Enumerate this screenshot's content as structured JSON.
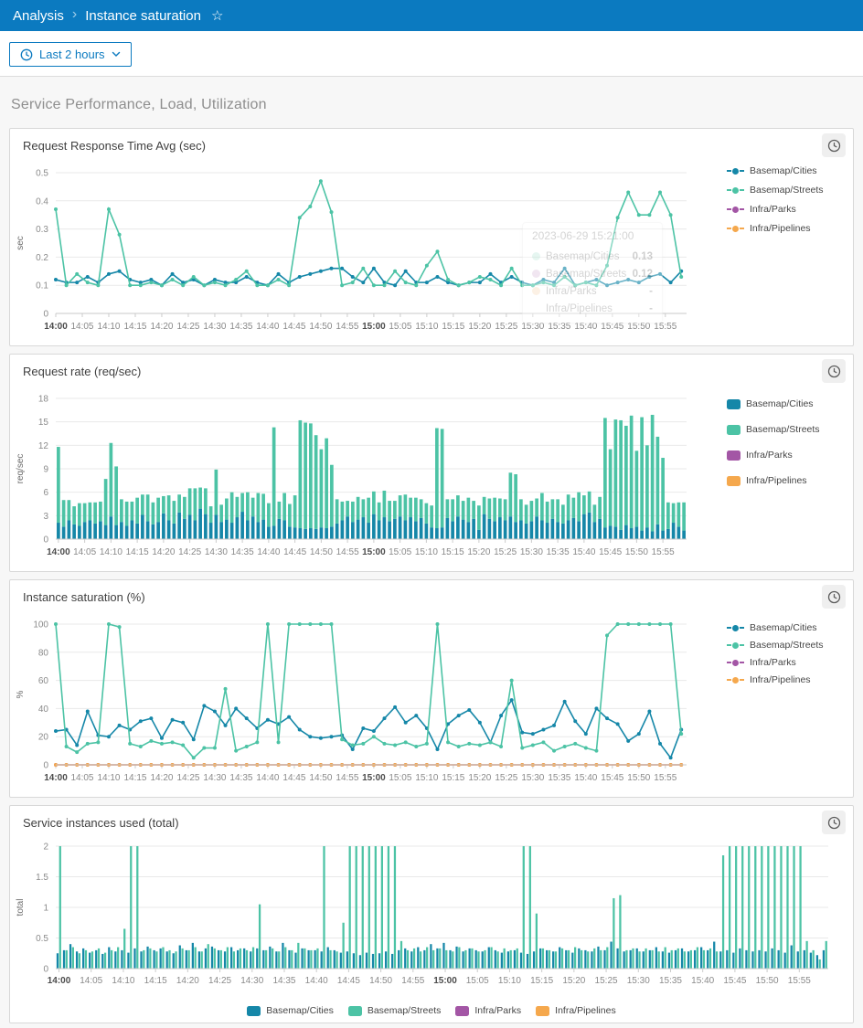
{
  "topbar": {
    "breadcrumb_root": "Analysis",
    "breadcrumb_separator": "›",
    "page_title": "Instance saturation",
    "star_icon": "☆"
  },
  "toolbar": {
    "time_range_label": "Last 2 hours"
  },
  "section": {
    "title": "Service Performance, Load, Utilization"
  },
  "colors": {
    "cities": "#1587a8",
    "streets": "#4cc3a5",
    "parks": "#a356a5",
    "pipelines": "#f5a84d"
  },
  "series_names": [
    "Basemap/Cities",
    "Basemap/Streets",
    "Infra/Parks",
    "Infra/Pipelines"
  ],
  "x_ticks": [
    "14:00",
    "14:05",
    "14:10",
    "14:15",
    "14:20",
    "14:25",
    "14:30",
    "14:35",
    "14:40",
    "14:45",
    "14:50",
    "14:55",
    "15:00",
    "15:05",
    "15:10",
    "15:15",
    "15:20",
    "15:25",
    "15:30",
    "15:35",
    "15:40",
    "15:45",
    "15:50",
    "15:55"
  ],
  "bold_ticks": [
    "14:00",
    "15:00"
  ],
  "tooltip": {
    "timestamp": "2023-06-29 15:21:00",
    "rows": [
      {
        "name": "Basemap/Cities",
        "value": "0.13"
      },
      {
        "name": "Basemap/Streets",
        "value": "0.12"
      },
      {
        "name": "Infra/Parks",
        "value": "-"
      },
      {
        "name": "Infra/Pipelines",
        "value": "-"
      }
    ]
  },
  "chart_data": [
    {
      "type": "line",
      "title": "Request Response Time Avg (sec)",
      "ylabel": "sec",
      "yticks": [
        0,
        0.1,
        0.2,
        0.3,
        0.4,
        0.5
      ],
      "interval_min": 2,
      "legend_position": "right",
      "series": [
        {
          "name": "Basemap/Cities",
          "color_key": "cities",
          "values": [
            0.12,
            0.11,
            0.11,
            0.13,
            0.11,
            0.14,
            0.15,
            0.12,
            0.11,
            0.12,
            0.1,
            0.14,
            0.11,
            0.12,
            0.1,
            0.12,
            0.11,
            0.11,
            0.13,
            0.11,
            0.1,
            0.14,
            0.11,
            0.13,
            0.14,
            0.15,
            0.16,
            0.16,
            0.13,
            0.11,
            0.16,
            0.11,
            0.1,
            0.15,
            0.11,
            0.11,
            0.13,
            0.11,
            0.1,
            0.11,
            0.11,
            0.14,
            0.11,
            0.13,
            0.11,
            0.1,
            0.12,
            0.11,
            0.16,
            0.1,
            0.11,
            0.12,
            0.1,
            0.11,
            0.12,
            0.11,
            0.13,
            0.14,
            0.11,
            0.15
          ]
        },
        {
          "name": "Basemap/Streets",
          "color_key": "streets",
          "values": [
            0.37,
            0.1,
            0.14,
            0.11,
            0.1,
            0.37,
            0.28,
            0.1,
            0.1,
            0.11,
            0.1,
            0.12,
            0.1,
            0.13,
            0.1,
            0.11,
            0.1,
            0.12,
            0.15,
            0.1,
            0.1,
            0.12,
            0.1,
            0.34,
            0.38,
            0.47,
            0.36,
            0.1,
            0.11,
            0.16,
            0.1,
            0.1,
            0.15,
            0.11,
            0.1,
            0.17,
            0.22,
            0.12,
            0.1,
            0.11,
            0.13,
            0.12,
            0.1,
            0.16,
            0.1,
            0.1,
            0.11,
            0.1,
            0.13,
            0.1,
            0.11,
            0.1,
            0.17,
            0.34,
            0.43,
            0.35,
            0.35,
            0.43,
            0.35,
            0.13
          ]
        },
        {
          "name": "Infra/Parks",
          "color_key": "parks"
        },
        {
          "name": "Infra/Pipelines",
          "color_key": "pipelines"
        }
      ]
    },
    {
      "type": "bar-stacked",
      "title": "Request rate (req/sec)",
      "ylabel": "req/sec",
      "yticks": [
        0,
        3,
        6,
        9,
        12,
        15,
        18
      ],
      "interval_min": 1,
      "legend_position": "right",
      "series": [
        {
          "name": "Basemap/Cities",
          "color_key": "cities",
          "values": [
            2.1,
            1.6,
            2.4,
            1.9,
            1.7,
            2.2,
            2.4,
            2.0,
            2.3,
            1.8,
            2.9,
            1.8,
            2.2,
            1.7,
            2.4,
            2.0,
            3.1,
            2.3,
            1.9,
            2.2,
            3.3,
            2.4,
            2.0,
            3.4,
            2.6,
            3.1,
            2.4,
            3.9,
            3.2,
            2.1,
            3.1,
            2.2,
            2.5,
            2.1,
            2.8,
            3.5,
            2.4,
            2.9,
            2.2,
            2.5,
            1.6,
            1.7,
            2.6,
            2.4,
            1.6,
            1.5,
            1.4,
            1.3,
            1.4,
            1.3,
            1.5,
            1.4,
            1.6,
            2.0,
            2.4,
            2.9,
            2.2,
            2.5,
            2.8,
            2.1,
            3.2,
            2.4,
            2.8,
            2.3,
            2.6,
            2.9,
            2.4,
            2.8,
            2.3,
            2.7,
            2.0,
            1.5,
            1.4,
            1.5,
            2.7,
            2.3,
            2.9,
            2.5,
            2.2,
            2.6,
            1.2,
            3.2,
            2.6,
            2.3,
            2.8,
            2.4,
            2.9,
            2.2,
            2.4,
            2.0,
            2.3,
            2.9,
            2.4,
            2.1,
            2.6,
            2.2,
            2.0,
            2.4,
            2.7,
            2.3,
            3.2,
            3.4,
            2.2,
            2.6,
            1.5,
            1.7,
            1.6,
            1.2,
            1.8,
            1.4,
            1.6,
            1.1,
            1.5,
            1.0,
            1.9,
            1.1,
            1.3,
            2.1,
            1.6,
            1.1
          ]
        },
        {
          "name": "Basemap/Streets",
          "color_key": "streets",
          "values": [
            9.7,
            3.4,
            2.6,
            2.3,
            2.9,
            2.4,
            2.3,
            2.7,
            2.5,
            5.9,
            9.4,
            7.5,
            2.9,
            3.1,
            2.4,
            3.3,
            2.6,
            3.4,
            2.8,
            3.1,
            2.2,
            3.2,
            2.9,
            2.3,
            2.8,
            3.4,
            4.1,
            2.7,
            3.3,
            2.1,
            5.8,
            2.2,
            2.7,
            3.9,
            2.6,
            2.4,
            3.6,
            2.4,
            3.7,
            3.3,
            3.0,
            12.6,
            2.2,
            3.5,
            2.9,
            4.1,
            13.8,
            13.6,
            13.4,
            12.0,
            10.0,
            11.5,
            7.9,
            3.1,
            2.4,
            2.0,
            2.6,
            2.9,
            2.3,
            3.2,
            2.9,
            2.3,
            3.4,
            2.6,
            2.3,
            2.7,
            3.3,
            2.5,
            3.0,
            2.4,
            2.6,
            2.8,
            12.8,
            12.6,
            2.4,
            2.8,
            2.7,
            2.4,
            3.1,
            2.3,
            3.1,
            2.2,
            2.6,
            3.0,
            2.4,
            2.7,
            5.6,
            6.1,
            2.7,
            2.4,
            2.6,
            2.3,
            3.5,
            2.7,
            2.5,
            2.9,
            2.4,
            3.3,
            2.6,
            3.7,
            2.4,
            2.7,
            2.2,
            2.8,
            14.0,
            9.8,
            13.7,
            14.0,
            12.7,
            14.4,
            9.7,
            14.5,
            10.5,
            14.9,
            11.2,
            9.3,
            3.4,
            2.5,
            3.1,
            3.6
          ]
        },
        {
          "name": "Infra/Parks",
          "color_key": "parks",
          "flat": 0
        },
        {
          "name": "Infra/Pipelines",
          "color_key": "pipelines",
          "flat": 0
        }
      ]
    },
    {
      "type": "line",
      "title": "Instance saturation (%)",
      "ylabel": "%",
      "yticks": [
        0,
        20,
        40,
        60,
        80,
        100
      ],
      "interval_min": 2,
      "legend_position": "right",
      "series": [
        {
          "name": "Basemap/Cities",
          "color_key": "cities",
          "values": [
            24,
            25,
            14,
            38,
            21,
            20,
            28,
            25,
            31,
            33,
            19,
            32,
            30,
            18,
            42,
            38,
            28,
            40,
            33,
            26,
            32,
            29,
            34,
            25,
            20,
            19,
            20,
            21,
            11,
            26,
            24,
            33,
            41,
            30,
            35,
            26,
            11,
            29,
            35,
            39,
            30,
            16,
            35,
            46,
            23,
            22,
            25,
            28,
            45,
            31,
            22,
            40,
            33,
            29,
            17,
            22,
            38,
            15,
            5,
            25
          ]
        },
        {
          "name": "Basemap/Streets",
          "color_key": "streets",
          "values": [
            100,
            13,
            9,
            15,
            16,
            100,
            98,
            15,
            13,
            17,
            15,
            16,
            14,
            5,
            12,
            12,
            54,
            10,
            13,
            16,
            100,
            16,
            100,
            100,
            100,
            100,
            100,
            18,
            14,
            15,
            20,
            15,
            14,
            16,
            13,
            15,
            100,
            16,
            13,
            15,
            14,
            16,
            13,
            60,
            12,
            14,
            16,
            10,
            13,
            15,
            12,
            10,
            92,
            100,
            100,
            100,
            100,
            100,
            100,
            22
          ]
        },
        {
          "name": "Infra/Parks",
          "color_key": "parks",
          "flat": 0
        },
        {
          "name": "Infra/Pipelines",
          "color_key": "pipelines",
          "flat": 0
        }
      ]
    },
    {
      "type": "bar-grouped",
      "title": "Service instances used (total)",
      "ylabel": "total",
      "yticks": [
        0,
        0.5,
        1,
        1.5,
        2
      ],
      "interval_min": 1,
      "legend_position": "bottom",
      "series": [
        {
          "name": "Basemap/Cities",
          "color_key": "cities",
          "values": [
            0.25,
            0.3,
            0.4,
            0.28,
            0.33,
            0.26,
            0.3,
            0.24,
            0.35,
            0.28,
            0.3,
            0.26,
            0.33,
            0.28,
            0.36,
            0.3,
            0.33,
            0.28,
            0.25,
            0.38,
            0.3,
            0.42,
            0.28,
            0.33,
            0.36,
            0.3,
            0.28,
            0.35,
            0.3,
            0.33,
            0.28,
            0.33,
            0.3,
            0.36,
            0.28,
            0.42,
            0.3,
            0.26,
            0.33,
            0.3,
            0.3,
            0.28,
            0.35,
            0.3,
            0.26,
            0.28,
            0.25,
            0.22,
            0.26,
            0.24,
            0.25,
            0.28,
            0.24,
            0.3,
            0.33,
            0.28,
            0.35,
            0.3,
            0.4,
            0.33,
            0.42,
            0.3,
            0.36,
            0.28,
            0.33,
            0.3,
            0.28,
            0.35,
            0.3,
            0.26,
            0.28,
            0.3,
            0.26,
            0.24,
            0.28,
            0.33,
            0.3,
            0.28,
            0.35,
            0.3,
            0.26,
            0.33,
            0.3,
            0.28,
            0.36,
            0.3,
            0.44,
            0.33,
            0.28,
            0.3,
            0.33,
            0.28,
            0.3,
            0.35,
            0.28,
            0.26,
            0.3,
            0.33,
            0.28,
            0.3,
            0.35,
            0.3,
            0.44,
            0.28,
            0.3,
            0.26,
            0.33,
            0.3,
            0.28,
            0.3,
            0.28,
            0.33,
            0.3,
            0.26,
            0.38,
            0.28,
            0.3,
            0.26,
            0.22,
            0.3
          ]
        },
        {
          "name": "Basemap/Streets",
          "color_key": "streets",
          "values": [
            2.0,
            0.3,
            0.35,
            0.25,
            0.3,
            0.28,
            0.33,
            0.26,
            0.3,
            0.35,
            0.65,
            2.0,
            2.0,
            0.3,
            0.33,
            0.28,
            0.35,
            0.3,
            0.28,
            0.33,
            0.3,
            0.35,
            0.28,
            0.4,
            0.33,
            0.3,
            0.35,
            0.28,
            0.33,
            0.3,
            0.35,
            1.05,
            0.3,
            0.33,
            0.28,
            0.35,
            0.3,
            0.42,
            0.33,
            0.3,
            0.33,
            2.0,
            0.3,
            0.28,
            0.75,
            2.0,
            2.0,
            2.0,
            2.0,
            2.0,
            2.0,
            2.0,
            2.0,
            0.45,
            0.3,
            0.33,
            0.28,
            0.35,
            0.3,
            0.33,
            0.3,
            0.28,
            0.35,
            0.3,
            0.33,
            0.28,
            0.3,
            0.35,
            0.28,
            0.33,
            0.3,
            0.33,
            2.0,
            2.0,
            0.9,
            0.33,
            0.3,
            0.28,
            0.33,
            0.3,
            0.35,
            0.3,
            0.28,
            0.33,
            0.3,
            0.35,
            1.15,
            1.2,
            0.3,
            0.33,
            0.28,
            0.33,
            0.3,
            0.28,
            0.35,
            0.3,
            0.33,
            0.28,
            0.3,
            0.35,
            0.3,
            0.33,
            0.28,
            1.85,
            2.0,
            2.0,
            2.0,
            2.0,
            2.0,
            2.0,
            2.0,
            2.0,
            2.0,
            2.0,
            2.0,
            2.0,
            0.45,
            0.3,
            0.15,
            0.45
          ]
        },
        {
          "name": "Infra/Parks",
          "color_key": "parks"
        },
        {
          "name": "Infra/Pipelines",
          "color_key": "pipelines"
        }
      ]
    }
  ]
}
